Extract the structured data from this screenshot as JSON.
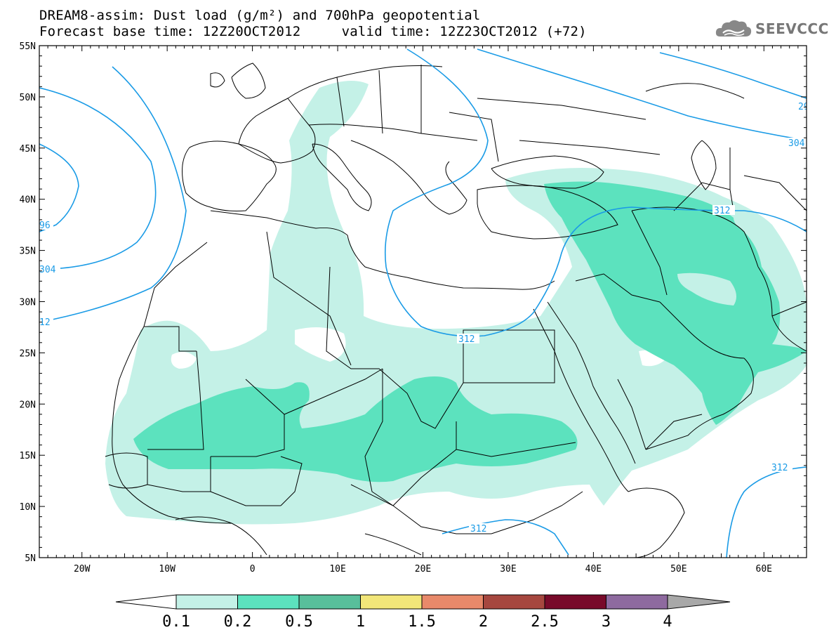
{
  "header": {
    "title_line1": "DREAM8-assim: Dust load (g/m²) and 700hPa geopotential",
    "title_line2": "Forecast base time: 12Z20OCT2012     valid time: 12Z23OCT2012 (+72)"
  },
  "logo": {
    "icon": "cloud-icon",
    "text": "SEEVCCC"
  },
  "map": {
    "lon_range": [
      -25,
      65
    ],
    "lat_range": [
      5,
      55
    ],
    "lat_ticks": [
      "55N",
      "50N",
      "45N",
      "40N",
      "35N",
      "30N",
      "25N",
      "20N",
      "15N",
      "10N",
      "5N"
    ],
    "lon_ticks": [
      "20W",
      "10W",
      "0",
      "10E",
      "20E",
      "30E",
      "40E",
      "50E",
      "60E"
    ],
    "contour_labels": [
      "96",
      "304",
      "12",
      "312",
      "312",
      "312",
      "312",
      "304",
      "29"
    ],
    "contour_color": "#1a9be6",
    "border_color": "#000000"
  },
  "colorbar": {
    "labels": [
      "0.1",
      "0.2",
      "0.5",
      "1",
      "1.5",
      "2",
      "2.5",
      "3",
      "4"
    ],
    "colors": [
      "#c4f1e7",
      "#5ce2be",
      "#58bf9b",
      "#f2e679",
      "#e8896a",
      "#a6473f",
      "#780a2a",
      "#8e6a9f",
      "#a8a8a8"
    ]
  }
}
